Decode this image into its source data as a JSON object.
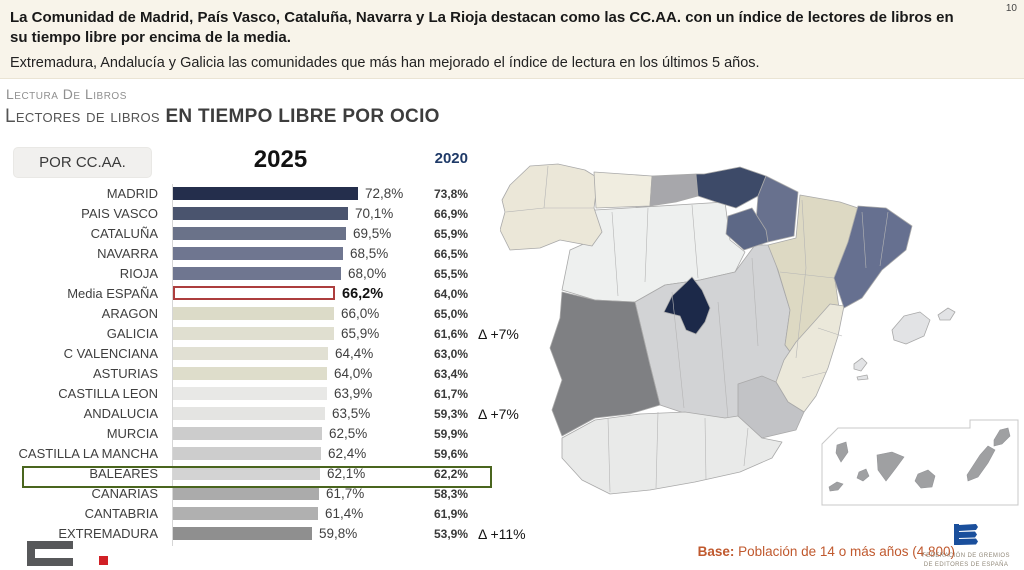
{
  "page": {
    "number": "10"
  },
  "header": {
    "headline": "La Comunidad de Madrid, País Vasco, Cataluña, Navarra y La Rioja destacan como las CC.AA. con un índice de lectores de libros en su tiempo libre por encima de la media.",
    "subheadline": "Extremadura, Andalucía y Galicia las comunidades que más han mejorado el índice de lectura en los últimos 5 años."
  },
  "section": {
    "kicker": "Lectura De Libros",
    "title_regular": "Lectores de libros ",
    "title_bold": "EN TIEMPO LIBRE POR OCIO",
    "filter_button": "POR CC.AA."
  },
  "chart_data": {
    "type": "bar",
    "title": "Lectores de libros en tiempo libre por ocio, por CC.AA.",
    "unit": "%",
    "xlim": [
      0,
      80
    ],
    "col_headers": {
      "y2025": "2025",
      "y2020": "2020"
    },
    "categories": [
      "MADRID",
      "PAIS VASCO",
      "CATALUÑA",
      "NAVARRA",
      "RIOJA",
      "Media ESPAÑA",
      "ARAGON",
      "GALICIA",
      "C VALENCIANA",
      "ASTURIAS",
      "CASTILLA LEON",
      "ANDALUCIA",
      "MURCIA",
      "CASTILLA LA MANCHA",
      "BALEARES",
      "CANARIAS",
      "CANTABRIA",
      "EXTREMADURA"
    ],
    "series": [
      {
        "name": "2025",
        "values": [
          72.8,
          70.1,
          69.5,
          68.5,
          68.0,
          66.2,
          66.0,
          65.9,
          64.4,
          64.0,
          63.9,
          63.5,
          62.5,
          62.4,
          62.1,
          61.7,
          61.4,
          59.8
        ]
      },
      {
        "name": "2020",
        "values": [
          73.8,
          66.9,
          65.9,
          66.5,
          65.5,
          64.0,
          65.0,
          61.6,
          63.0,
          63.4,
          61.7,
          59.3,
          59.9,
          59.6,
          62.2,
          58.3,
          61.9,
          53.9
        ]
      }
    ],
    "rows": [
      {
        "label": "MADRID",
        "v2025": 72.8,
        "label_2025": "72,8%",
        "label_2020": "73,8%",
        "delta": "",
        "bar_color": "#242e4c",
        "highlight": false
      },
      {
        "label": "PAIS VASCO",
        "v2025": 70.1,
        "label_2025": "70,1%",
        "label_2020": "66,9%",
        "delta": "",
        "bar_color": "#4a546e",
        "highlight": false
      },
      {
        "label": "CATALUÑA",
        "v2025": 69.5,
        "label_2025": "69,5%",
        "label_2020": "65,9%",
        "delta": "",
        "bar_color": "#6a7289",
        "highlight": false
      },
      {
        "label": "NAVARRA",
        "v2025": 68.5,
        "label_2025": "68,5%",
        "label_2020": "66,5%",
        "delta": "",
        "bar_color": "#6f7690",
        "highlight": false
      },
      {
        "label": "RIOJA",
        "v2025": 68.0,
        "label_2025": "68,0%",
        "label_2020": "65,5%",
        "delta": "",
        "bar_color": "#6f7690",
        "highlight": false
      },
      {
        "label": "Media ESPAÑA",
        "v2025": 66.2,
        "label_2025": "66,2%",
        "label_2020": "64,0%",
        "delta": "",
        "bar_color": "#ffffff",
        "highlight": true
      },
      {
        "label": "ARAGON",
        "v2025": 66.0,
        "label_2025": "66,0%",
        "label_2020": "65,0%",
        "delta": "",
        "bar_color": "#dcdbc8",
        "highlight": false
      },
      {
        "label": "GALICIA",
        "v2025": 65.9,
        "label_2025": "65,9%",
        "label_2020": "61,6%",
        "delta": "Δ +7%",
        "bar_color": "#e0dfd0",
        "highlight": false
      },
      {
        "label": "C VALENCIANA",
        "v2025": 64.4,
        "label_2025": "64,4%",
        "label_2020": "63,0%",
        "delta": "",
        "bar_color": "#e1e0d3",
        "highlight": false
      },
      {
        "label": "ASTURIAS",
        "v2025": 64.0,
        "label_2025": "64,0%",
        "label_2020": "63,4%",
        "delta": "",
        "bar_color": "#deddcb",
        "highlight": false
      },
      {
        "label": "CASTILLA LEON",
        "v2025": 63.9,
        "label_2025": "63,9%",
        "label_2020": "61,7%",
        "delta": "",
        "bar_color": "#e8e8e6",
        "highlight": false
      },
      {
        "label": "ANDALUCIA",
        "v2025": 63.5,
        "label_2025": "63,5%",
        "label_2020": "59,3%",
        "delta": "Δ +7%",
        "bar_color": "#e4e4e2",
        "highlight": false
      },
      {
        "label": "MURCIA",
        "v2025": 62.5,
        "label_2025": "62,5%",
        "label_2020": "59,9%",
        "delta": "",
        "bar_color": "#cccccc",
        "highlight": false
      },
      {
        "label": "CASTILLA LA MANCHA",
        "v2025": 62.4,
        "label_2025": "62,4%",
        "label_2020": "59,6%",
        "delta": "",
        "bar_color": "#cdcdcd",
        "highlight": false
      },
      {
        "label": "BALEARES",
        "v2025": 62.1,
        "label_2025": "62,1%",
        "label_2020": "62,2%",
        "delta": "",
        "bar_color": "#d3d3d3",
        "highlight": false
      },
      {
        "label": "CANARIAS",
        "v2025": 61.7,
        "label_2025": "61,7%",
        "label_2020": "58,3%",
        "delta": "",
        "bar_color": "#ababab",
        "highlight": false
      },
      {
        "label": "CANTABRIA",
        "v2025": 61.4,
        "label_2025": "61,4%",
        "label_2020": "61,9%",
        "delta": "",
        "bar_color": "#b0b0b0",
        "highlight": false
      },
      {
        "label": "EXTREMADURA",
        "v2025": 59.8,
        "label_2025": "59,8%",
        "label_2020": "53,9%",
        "delta": "Δ +11%",
        "bar_color": "#8f8f8f",
        "highlight": false
      }
    ],
    "highlight_box_color": "#4a651e",
    "highlight_bar_border": "#ad3e3e"
  },
  "map": {
    "region_colors": {
      "galicia": "#ebe7d8",
      "asturias": "#f0ede0",
      "cantabria": "#a7a7ab",
      "pais_vasco": "#3d4a68",
      "navarra": "#68718e",
      "rioja": "#5d6886",
      "aragon": "#ddd9c3",
      "cataluna": "#667090",
      "castilla_leon": "#eef0ef",
      "madrid": "#1c2949",
      "castilla_mancha": "#d2d3d5",
      "valencia": "#ebe8da",
      "murcia": "#c2c3c6",
      "extremadura": "#7f8083",
      "andalucia": "#e9eae9",
      "baleares": "#e2e3e5",
      "canarias": "#9fa0a2"
    }
  },
  "footer": {
    "base_label": "Base:",
    "base_text": " Población de 14 o más años (4.800)",
    "base_color": "#c0592e",
    "org_line1": "FEDERACIÓN DE GREMIOS",
    "org_line2": "DE EDITORES DE ESPAÑA",
    "org_icon_color": "#1a4f9c",
    "brand": "C."
  }
}
